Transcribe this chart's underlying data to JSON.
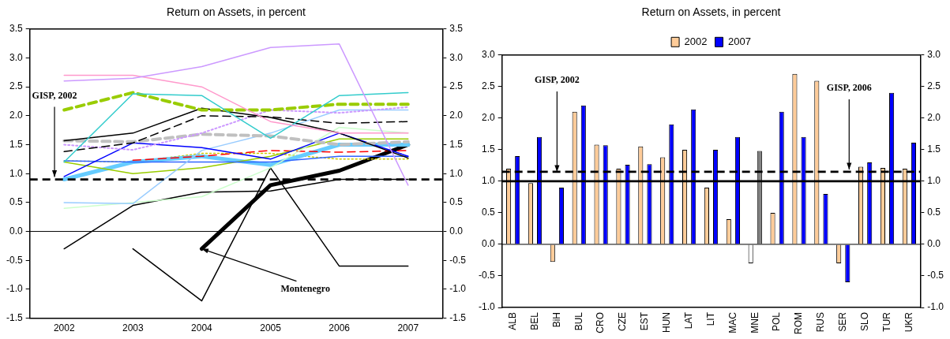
{
  "chart_data": [
    {
      "type": "line",
      "title": "Return on Assets, in percent",
      "categories": [
        "2002",
        "2003",
        "2004",
        "2005",
        "2006",
        "2007"
      ],
      "series": [
        {
          "color": "#cc99ff",
          "line_style": "solid",
          "values": [
            2.6,
            2.65,
            2.85,
            3.18,
            3.24,
            0.8
          ]
        },
        {
          "color": "#ff99cc",
          "line_style": "solid",
          "values": [
            2.7,
            2.7,
            2.5,
            1.9,
            1.7,
            1.7
          ]
        },
        {
          "color": "#33cccc",
          "line_style": "solid",
          "values": [
            1.2,
            2.38,
            2.35,
            1.61,
            2.35,
            2.4
          ]
        },
        {
          "color": "#99cc00",
          "line_style": "dashed",
          "values": [
            2.1,
            2.4,
            2.1,
            2.1,
            2.2,
            2.2
          ]
        },
        {
          "color": "#000000",
          "line_style": "solid",
          "values": [
            1.57,
            1.7,
            2.13,
            1.97,
            1.7,
            1.27
          ]
        },
        {
          "color": "#000000",
          "line_style": "dashed",
          "values": [
            1.38,
            1.53,
            2.0,
            1.98,
            1.87,
            1.9
          ]
        },
        {
          "color": "#cc99ff",
          "line_style": "dotted",
          "values": [
            1.5,
            1.41,
            1.7,
            2.1,
            2.05,
            2.15
          ]
        },
        {
          "color": "#c0c0c0",
          "line_style": "dashed",
          "values": [
            1.57,
            1.55,
            1.68,
            1.65,
            1.5,
            1.55
          ]
        },
        {
          "color": "#0000ff",
          "line_style": "solid",
          "values": [
            0.95,
            1.53,
            1.45,
            1.25,
            1.7,
            1.3
          ]
        },
        {
          "color": "#99ccff",
          "line_style": "solid",
          "values": [
            0.5,
            0.48,
            1.4,
            1.7,
            2.1,
            2.1
          ]
        },
        {
          "color": "#ccffcc",
          "line_style": "solid",
          "values": [
            0.4,
            0.5,
            0.6,
            1.1,
            1.8,
            1.7
          ]
        },
        {
          "color": "#3366ff",
          "line_style": "solid",
          "values": [
            1.22,
            1.2,
            1.2,
            1.2,
            1.3,
            1.3
          ]
        },
        {
          "color": "#99cc00",
          "line_style": "solid",
          "values": [
            1.2,
            1.0,
            1.1,
            1.3,
            1.6,
            1.6
          ]
        },
        {
          "color": "#ff0000",
          "line_style": "dashed",
          "values": [
            null,
            1.23,
            1.3,
            1.4,
            1.37,
            1.4
          ]
        },
        {
          "color": "#66ccff",
          "line_style": "solid",
          "values": [
            0.9,
            1.2,
            1.3,
            1.15,
            1.5,
            1.5
          ]
        },
        {
          "color": "#cccc00",
          "line_style": "dotted",
          "values": [
            1.22,
            1.2,
            1.35,
            1.35,
            1.25,
            1.25
          ]
        },
        {
          "color": "#000000",
          "line_style": "solid",
          "values": [
            -0.3,
            0.45,
            0.68,
            0.7,
            0.9,
            0.9
          ]
        },
        {
          "color": "#000000",
          "line_style": "solid",
          "values": [
            null,
            -0.3,
            -1.2,
            1.1,
            -0.6,
            -0.6
          ]
        },
        {
          "color": "#000000",
          "line_style": "solid",
          "values": [
            null,
            null,
            -0.3,
            0.8,
            1.05,
            1.5
          ]
        }
      ],
      "ylim": [
        -1.5,
        3.5
      ],
      "yticks": [
        {
          "value": -1.5,
          "label": "-1.5"
        },
        {
          "value": -1,
          "label": "-1.0"
        },
        {
          "value": -0.5,
          "label": "-0.5"
        },
        {
          "value": 0,
          "label": "0.0"
        },
        {
          "value": 0.5,
          "label": "0.5"
        },
        {
          "value": 1,
          "label": "1.0"
        },
        {
          "value": 1.5,
          "label": "1.5"
        },
        {
          "value": 2,
          "label": "2.0"
        },
        {
          "value": 2.5,
          "label": "2.5"
        },
        {
          "value": 3,
          "label": "3.0"
        },
        {
          "value": 3.5,
          "label": "3.5"
        }
      ],
      "y2lim": [
        -1.5,
        3.5
      ],
      "y2ticks": [
        {
          "value": -1.5,
          "label": "-1.5"
        },
        {
          "value": -1,
          "label": "-1.0"
        },
        {
          "value": -0.5,
          "label": "-0.5"
        },
        {
          "value": 0,
          "label": "0.0"
        },
        {
          "value": 0.5,
          "label": "0.5"
        },
        {
          "value": 1,
          "label": "1.0"
        },
        {
          "value": 1.5,
          "label": "1.5"
        },
        {
          "value": 2,
          "label": "2.0"
        },
        {
          "value": 2.5,
          "label": "2.5"
        },
        {
          "value": 3,
          "label": "3.0"
        },
        {
          "value": 3.5,
          "label": "3.5"
        }
      ],
      "ref_lines": [
        {
          "axis": "y",
          "value": 0.9,
          "label": "GISP, 2002",
          "line_style": "dashed"
        },
        {
          "axis": "y",
          "value": 0,
          "line_style": "solid"
        }
      ],
      "annotations": [
        {
          "text": "Montenegro",
          "x": "2004",
          "y": -0.3
        }
      ],
      "marker": "none",
      "grid": false,
      "legend": false
    },
    {
      "type": "bar",
      "title": "Return on Assets, in percent",
      "categories": [
        "ALB",
        "BEL",
        "BiH",
        "BUL",
        "CRO",
        "CZE",
        "EST",
        "HUN",
        "LAT",
        "LIT",
        "MAC",
        "MNE",
        "POL",
        "ROM",
        "RUS",
        "SER",
        "SLO",
        "TUR",
        "UKR"
      ],
      "series": [
        {
          "name": "2002",
          "color": "#ffcc99",
          "colors": [
            "#ffcc99",
            "#ffcc99",
            "#ffcc99",
            "#ffcc99",
            "#ffcc99",
            "#ffcc99",
            "#ffcc99",
            "#ffcc99",
            "#ffcc99",
            "#ffcc99",
            "#ffcc99",
            "#ffffff",
            "#ffcc99",
            "#ffcc99",
            "#ffcc99",
            "#ffcc99",
            "#ffcc99",
            "#ffcc99",
            "#ffcc99"
          ],
          "values": [
            1.2,
            0.97,
            -0.28,
            2.1,
            1.58,
            1.2,
            1.55,
            1.38,
            1.5,
            0.9,
            0.4,
            -0.3,
            0.5,
            2.7,
            2.59,
            -0.3,
            1.23,
            1.21,
            1.2
          ]
        },
        {
          "name": "2007",
          "color": "#0000ff",
          "colors": [
            "#0000ff",
            "#0000ff",
            "#0000ff",
            "#0000ff",
            "#0000ff",
            "#0000ff",
            "#0000ff",
            "#0000ff",
            "#0000ff",
            "#0000ff",
            "#0000ff",
            "#808080",
            "#0000ff",
            "#0000ff",
            "#0000ff",
            "#0000ff",
            "#0000ff",
            "#0000ff",
            "#0000ff"
          ],
          "values": [
            1.4,
            1.7,
            0.9,
            2.2,
            1.57,
            1.26,
            1.27,
            1.9,
            2.14,
            1.5,
            1.7,
            1.48,
            2.1,
            1.7,
            0.8,
            -0.6,
            1.3,
            2.4,
            1.61
          ]
        }
      ],
      "ylim": [
        -1,
        3
      ],
      "yticks": [
        {
          "value": -1,
          "label": "-1.0"
        },
        {
          "value": -0.5,
          "label": "-0.5"
        },
        {
          "value": 0,
          "label": "0.0"
        },
        {
          "value": 0.5,
          "label": "0.5"
        },
        {
          "value": 1,
          "label": "1.0"
        },
        {
          "value": 1.5,
          "label": "1.5"
        },
        {
          "value": 2,
          "label": "2.0"
        },
        {
          "value": 2.5,
          "label": "2.5"
        },
        {
          "value": 3,
          "label": "3.0"
        }
      ],
      "y2lim": [
        -1,
        3
      ],
      "y2ticks": [
        {
          "value": -1,
          "label": "-1.0"
        },
        {
          "value": -0.5,
          "label": "-0.5"
        },
        {
          "value": 0,
          "label": "0.0"
        },
        {
          "value": 0.5,
          "label": "0.5"
        },
        {
          "value": 1,
          "label": "1.0"
        },
        {
          "value": 1.5,
          "label": "1.5"
        },
        {
          "value": 2,
          "label": "2.0"
        },
        {
          "value": 2.5,
          "label": "2.5"
        },
        {
          "value": 3,
          "label": "3.0"
        }
      ],
      "ref_lines": [
        {
          "axis": "y",
          "value": 1.15,
          "label": "GISP, 2006",
          "line_style": "dashed"
        },
        {
          "axis": "y",
          "value": 1,
          "line_style": "solid"
        },
        {
          "axis": "y",
          "value": 0,
          "line_style": "solid"
        }
      ],
      "annotations": [
        {
          "text": "GISP, 2002",
          "x": "BiH",
          "y": 1.15
        }
      ],
      "grid": false,
      "legend": "top"
    }
  ]
}
